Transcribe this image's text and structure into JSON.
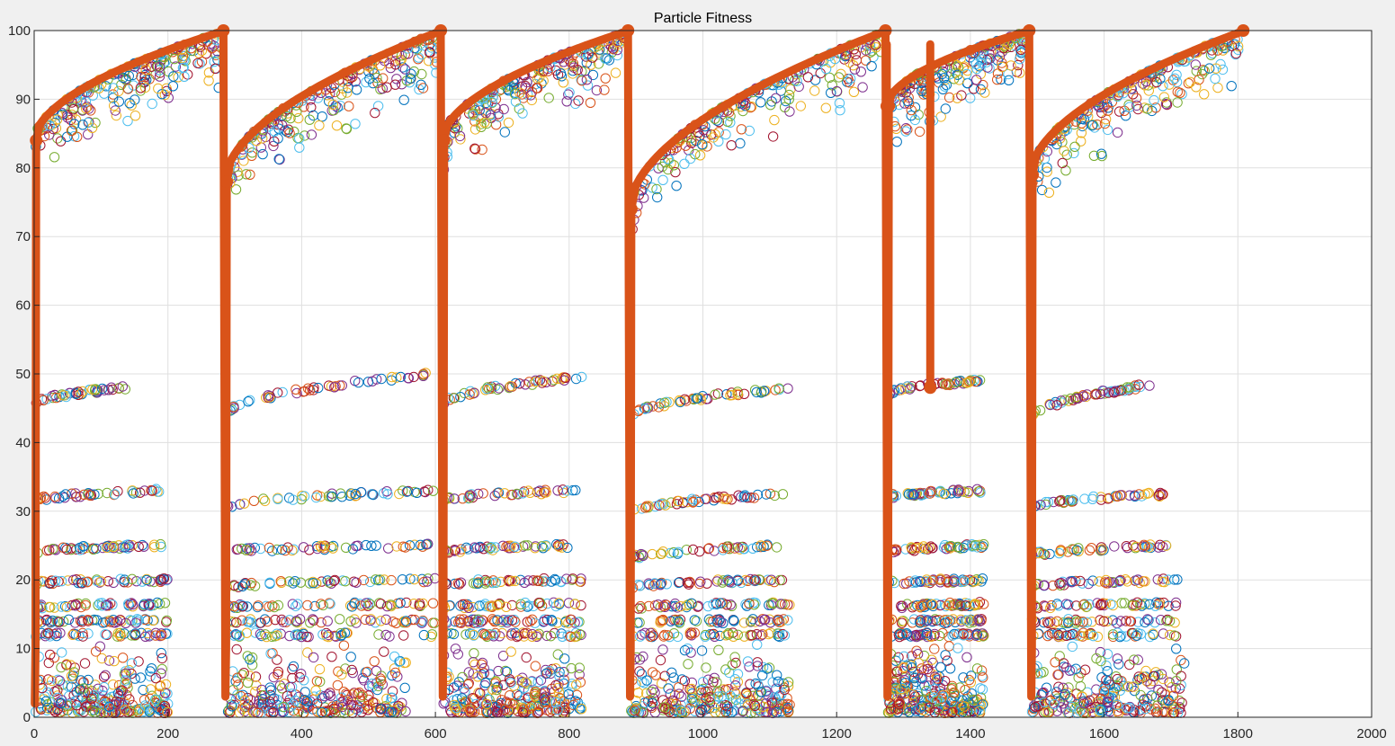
{
  "window": {
    "title": "Particle Fitness"
  },
  "colors": {
    "figure_bg": "#f0f0f0",
    "axes_bg": "#ffffff",
    "grid": "#dfdfdf",
    "axis": "#262626",
    "best_line": "#d95319",
    "particles": [
      "#0072bd",
      "#d95319",
      "#edb120",
      "#7e2f8e",
      "#77ac30",
      "#4dbeee",
      "#a2142f"
    ]
  },
  "chart_data": {
    "type": "scatter",
    "title": "Particle Fitness",
    "xlabel": "",
    "ylabel": "",
    "xlim": [
      0,
      2000
    ],
    "ylim": [
      0,
      100
    ],
    "grid": true,
    "x_ticks": [
      0,
      200,
      400,
      600,
      800,
      1000,
      1200,
      1400,
      1600,
      1800,
      2000
    ],
    "y_ticks": [
      0,
      10,
      20,
      30,
      40,
      50,
      60,
      70,
      80,
      90,
      100
    ],
    "x_tick_labels": [
      "0",
      "200",
      "400",
      "600",
      "800",
      "1000",
      "1200",
      "1400",
      "1600",
      "1800",
      "2000"
    ],
    "y_tick_labels": [
      "0",
      "10",
      "20",
      "30",
      "40",
      "50",
      "60",
      "70",
      "80",
      "90",
      "100"
    ],
    "segments": [
      {
        "x_start": 0,
        "x_end": 285,
        "best_start": 84,
        "best_end": 100,
        "particle_x_end": 200,
        "bands": [
          48,
          33,
          25,
          20,
          16.5,
          14,
          12
        ],
        "band_start": [
          45.5,
          31.5,
          24,
          19.5,
          16,
          14,
          12
        ],
        "band_x_end": [
          140,
          190,
          190,
          200,
          200,
          200,
          200
        ]
      },
      {
        "x_start": 285,
        "x_end": 610,
        "best_start": 78,
        "best_end": 100,
        "particle_x_end": 560,
        "bands": [
          50,
          33,
          25,
          20,
          16.5,
          14,
          12
        ],
        "band_start": [
          44,
          30.5,
          24,
          19,
          16,
          14,
          12
        ],
        "band_x_end": [
          600,
          600,
          600,
          600,
          600,
          600,
          600
        ]
      },
      {
        "x_start": 610,
        "x_end": 890,
        "best_start": 84,
        "best_end": 100,
        "particle_x_end": 820,
        "bands": [
          49.5,
          33,
          25,
          20,
          16.5,
          14,
          12
        ],
        "band_start": [
          45.5,
          31.5,
          24,
          19.5,
          16,
          14,
          12
        ],
        "band_x_end": [
          820,
          810,
          810,
          820,
          820,
          820,
          820
        ]
      },
      {
        "x_start": 890,
        "x_end": 1275,
        "best_start": 74,
        "best_end": 100,
        "particle_x_end": 1130,
        "bands": [
          48,
          32.5,
          25,
          20,
          16.5,
          14,
          12
        ],
        "band_start": [
          43.5,
          30,
          23,
          19,
          16,
          14,
          12
        ],
        "band_x_end": [
          1130,
          1130,
          1120,
          1120,
          1130,
          1130,
          1130
        ]
      },
      {
        "x_start": 1275,
        "x_end": 1490,
        "best_start": 89,
        "best_end": 100,
        "particle_x_end": 1420,
        "bands": [
          49,
          33,
          25,
          20,
          16.5,
          14,
          12
        ],
        "band_start": [
          47,
          32,
          24,
          19.5,
          16,
          14,
          12
        ],
        "band_x_end": [
          1420,
          1420,
          1420,
          1420,
          1420,
          1420,
          1420
        ]
      },
      {
        "x_start": 1490,
        "x_end": 1810,
        "best_start": 79,
        "best_end": 100,
        "particle_x_end": 1720,
        "bands": [
          48.5,
          32.5,
          25,
          20,
          16.5,
          14,
          12
        ],
        "band_start": [
          43.5,
          30.5,
          23.5,
          19,
          16,
          14,
          12
        ],
        "band_x_end": [
          1680,
          1690,
          1710,
          1710,
          1710,
          1710,
          1710
        ]
      }
    ],
    "best_line_dips": [
      {
        "x": 1275,
        "y": 89
      },
      {
        "x": 1340,
        "y": 48
      }
    ]
  }
}
